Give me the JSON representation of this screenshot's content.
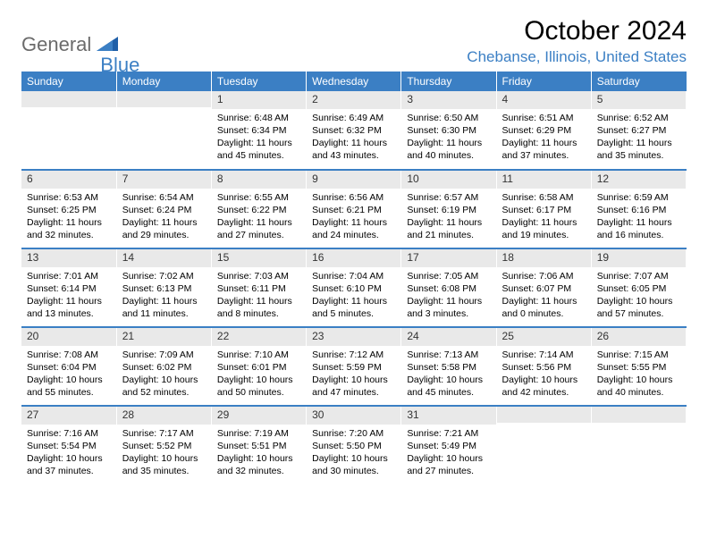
{
  "logo": {
    "part1": "General",
    "part2": "Blue"
  },
  "title": "October 2024",
  "location": "Chebanse, Illinois, United States",
  "columns": [
    "Sunday",
    "Monday",
    "Tuesday",
    "Wednesday",
    "Thursday",
    "Friday",
    "Saturday"
  ],
  "colors": {
    "header_bg": "#3b7fc4",
    "header_text": "#ffffff",
    "band_bg": "#e9e9e9",
    "divider": "#3b7fc4",
    "logo_gray": "#6b6b6b",
    "logo_blue": "#3b7fc4"
  },
  "weeks": [
    [
      {
        "n": "",
        "sr": "",
        "ss": "",
        "dl": ""
      },
      {
        "n": "",
        "sr": "",
        "ss": "",
        "dl": ""
      },
      {
        "n": "1",
        "sr": "Sunrise: 6:48 AM",
        "ss": "Sunset: 6:34 PM",
        "dl": "Daylight: 11 hours and 45 minutes."
      },
      {
        "n": "2",
        "sr": "Sunrise: 6:49 AM",
        "ss": "Sunset: 6:32 PM",
        "dl": "Daylight: 11 hours and 43 minutes."
      },
      {
        "n": "3",
        "sr": "Sunrise: 6:50 AM",
        "ss": "Sunset: 6:30 PM",
        "dl": "Daylight: 11 hours and 40 minutes."
      },
      {
        "n": "4",
        "sr": "Sunrise: 6:51 AM",
        "ss": "Sunset: 6:29 PM",
        "dl": "Daylight: 11 hours and 37 minutes."
      },
      {
        "n": "5",
        "sr": "Sunrise: 6:52 AM",
        "ss": "Sunset: 6:27 PM",
        "dl": "Daylight: 11 hours and 35 minutes."
      }
    ],
    [
      {
        "n": "6",
        "sr": "Sunrise: 6:53 AM",
        "ss": "Sunset: 6:25 PM",
        "dl": "Daylight: 11 hours and 32 minutes."
      },
      {
        "n": "7",
        "sr": "Sunrise: 6:54 AM",
        "ss": "Sunset: 6:24 PM",
        "dl": "Daylight: 11 hours and 29 minutes."
      },
      {
        "n": "8",
        "sr": "Sunrise: 6:55 AM",
        "ss": "Sunset: 6:22 PM",
        "dl": "Daylight: 11 hours and 27 minutes."
      },
      {
        "n": "9",
        "sr": "Sunrise: 6:56 AM",
        "ss": "Sunset: 6:21 PM",
        "dl": "Daylight: 11 hours and 24 minutes."
      },
      {
        "n": "10",
        "sr": "Sunrise: 6:57 AM",
        "ss": "Sunset: 6:19 PM",
        "dl": "Daylight: 11 hours and 21 minutes."
      },
      {
        "n": "11",
        "sr": "Sunrise: 6:58 AM",
        "ss": "Sunset: 6:17 PM",
        "dl": "Daylight: 11 hours and 19 minutes."
      },
      {
        "n": "12",
        "sr": "Sunrise: 6:59 AM",
        "ss": "Sunset: 6:16 PM",
        "dl": "Daylight: 11 hours and 16 minutes."
      }
    ],
    [
      {
        "n": "13",
        "sr": "Sunrise: 7:01 AM",
        "ss": "Sunset: 6:14 PM",
        "dl": "Daylight: 11 hours and 13 minutes."
      },
      {
        "n": "14",
        "sr": "Sunrise: 7:02 AM",
        "ss": "Sunset: 6:13 PM",
        "dl": "Daylight: 11 hours and 11 minutes."
      },
      {
        "n": "15",
        "sr": "Sunrise: 7:03 AM",
        "ss": "Sunset: 6:11 PM",
        "dl": "Daylight: 11 hours and 8 minutes."
      },
      {
        "n": "16",
        "sr": "Sunrise: 7:04 AM",
        "ss": "Sunset: 6:10 PM",
        "dl": "Daylight: 11 hours and 5 minutes."
      },
      {
        "n": "17",
        "sr": "Sunrise: 7:05 AM",
        "ss": "Sunset: 6:08 PM",
        "dl": "Daylight: 11 hours and 3 minutes."
      },
      {
        "n": "18",
        "sr": "Sunrise: 7:06 AM",
        "ss": "Sunset: 6:07 PM",
        "dl": "Daylight: 11 hours and 0 minutes."
      },
      {
        "n": "19",
        "sr": "Sunrise: 7:07 AM",
        "ss": "Sunset: 6:05 PM",
        "dl": "Daylight: 10 hours and 57 minutes."
      }
    ],
    [
      {
        "n": "20",
        "sr": "Sunrise: 7:08 AM",
        "ss": "Sunset: 6:04 PM",
        "dl": "Daylight: 10 hours and 55 minutes."
      },
      {
        "n": "21",
        "sr": "Sunrise: 7:09 AM",
        "ss": "Sunset: 6:02 PM",
        "dl": "Daylight: 10 hours and 52 minutes."
      },
      {
        "n": "22",
        "sr": "Sunrise: 7:10 AM",
        "ss": "Sunset: 6:01 PM",
        "dl": "Daylight: 10 hours and 50 minutes."
      },
      {
        "n": "23",
        "sr": "Sunrise: 7:12 AM",
        "ss": "Sunset: 5:59 PM",
        "dl": "Daylight: 10 hours and 47 minutes."
      },
      {
        "n": "24",
        "sr": "Sunrise: 7:13 AM",
        "ss": "Sunset: 5:58 PM",
        "dl": "Daylight: 10 hours and 45 minutes."
      },
      {
        "n": "25",
        "sr": "Sunrise: 7:14 AM",
        "ss": "Sunset: 5:56 PM",
        "dl": "Daylight: 10 hours and 42 minutes."
      },
      {
        "n": "26",
        "sr": "Sunrise: 7:15 AM",
        "ss": "Sunset: 5:55 PM",
        "dl": "Daylight: 10 hours and 40 minutes."
      }
    ],
    [
      {
        "n": "27",
        "sr": "Sunrise: 7:16 AM",
        "ss": "Sunset: 5:54 PM",
        "dl": "Daylight: 10 hours and 37 minutes."
      },
      {
        "n": "28",
        "sr": "Sunrise: 7:17 AM",
        "ss": "Sunset: 5:52 PM",
        "dl": "Daylight: 10 hours and 35 minutes."
      },
      {
        "n": "29",
        "sr": "Sunrise: 7:19 AM",
        "ss": "Sunset: 5:51 PM",
        "dl": "Daylight: 10 hours and 32 minutes."
      },
      {
        "n": "30",
        "sr": "Sunrise: 7:20 AM",
        "ss": "Sunset: 5:50 PM",
        "dl": "Daylight: 10 hours and 30 minutes."
      },
      {
        "n": "31",
        "sr": "Sunrise: 7:21 AM",
        "ss": "Sunset: 5:49 PM",
        "dl": "Daylight: 10 hours and 27 minutes."
      },
      {
        "n": "",
        "sr": "",
        "ss": "",
        "dl": ""
      },
      {
        "n": "",
        "sr": "",
        "ss": "",
        "dl": ""
      }
    ]
  ]
}
